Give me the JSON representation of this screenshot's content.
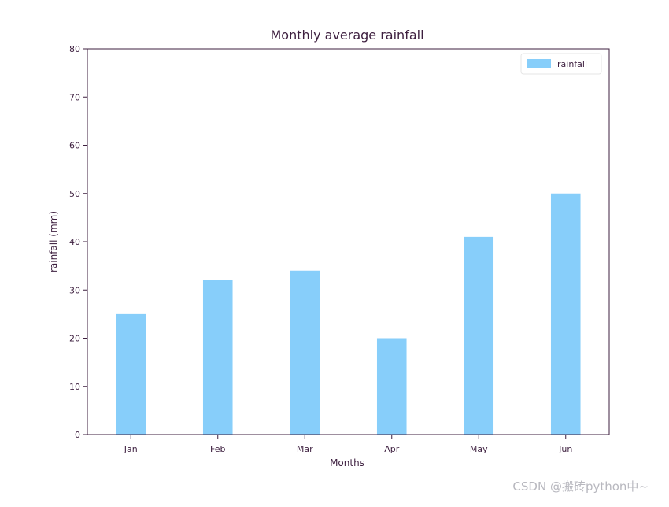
{
  "chart_data": {
    "type": "bar",
    "title": "Monthly average rainfall",
    "xlabel": "Months",
    "ylabel": "rainfall (mm)",
    "categories": [
      "Jan",
      "Feb",
      "Mar",
      "Apr",
      "May",
      "Jun"
    ],
    "values": [
      25,
      32,
      34,
      20,
      41,
      50
    ],
    "ylim": [
      0,
      80
    ],
    "yticks": [
      0,
      10,
      20,
      30,
      40,
      50,
      60,
      70,
      80
    ],
    "series_name": "rainfall",
    "legend_position": "top-right",
    "bar_color": "#87cefa",
    "axis_color": "#3d1f3f",
    "grid": false
  },
  "watermark": "CSDN @搬砖python中~"
}
